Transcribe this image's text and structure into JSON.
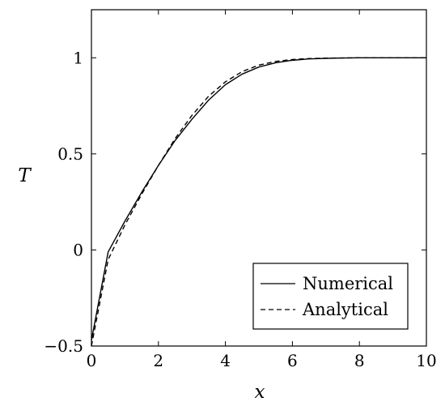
{
  "chart_data": {
    "type": "line",
    "title": "",
    "xlabel": "x",
    "ylabel": "T",
    "xlim": [
      0,
      10
    ],
    "ylim": [
      -0.5,
      1.25
    ],
    "xticks": [
      0,
      2,
      4,
      6,
      8,
      10
    ],
    "xtick_labels": [
      "0",
      "2",
      "4",
      "6",
      "8",
      "10"
    ],
    "yticks": [
      -0.5,
      0,
      0.5,
      1
    ],
    "ytick_labels": [
      "−0.5",
      "0",
      "0.5",
      "1"
    ],
    "grid": false,
    "legend_position": "bottom-right",
    "series": [
      {
        "name": "Numerical",
        "style": "solid",
        "color": "#000000",
        "x": [
          0,
          0.5,
          1,
          1.5,
          2,
          2.5,
          3,
          3.5,
          4,
          4.5,
          5,
          5.5,
          6,
          6.5,
          7,
          7.5,
          8,
          8.5,
          9,
          9.5,
          10
        ],
        "y": [
          -0.47,
          -0.01,
          0.15,
          0.3,
          0.44,
          0.57,
          0.68,
          0.78,
          0.86,
          0.915,
          0.952,
          0.974,
          0.987,
          0.994,
          0.997,
          0.999,
          1.0,
          1.0,
          1.0,
          1.0,
          1.0
        ]
      },
      {
        "name": "Analytical",
        "style": "dashed",
        "color": "#000000",
        "x": [
          0,
          0.5,
          1,
          1.5,
          2,
          2.5,
          3,
          3.5,
          4,
          4.5,
          5,
          5.5,
          6,
          6.5,
          7,
          7.5,
          8,
          8.5,
          9,
          9.5,
          10
        ],
        "y": [
          -0.5,
          -0.05,
          0.13,
          0.29,
          0.44,
          0.58,
          0.7,
          0.8,
          0.875,
          0.928,
          0.962,
          0.981,
          0.991,
          0.996,
          0.998,
          0.999,
          1.0,
          1.0,
          1.0,
          1.0,
          1.0
        ]
      }
    ]
  }
}
